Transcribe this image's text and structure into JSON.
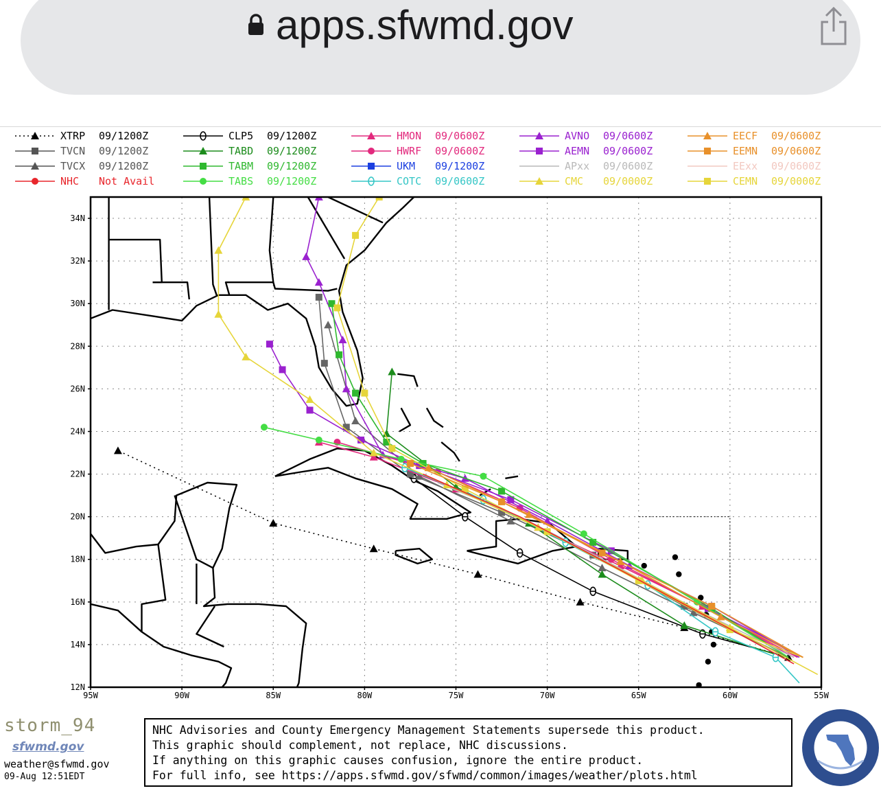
{
  "browser": {
    "url": "apps.sfwmd.gov"
  },
  "legend": [
    {
      "label": "XTRP",
      "time": "09/1200Z",
      "color": "#000000",
      "marker": "triangle",
      "dash": true
    },
    {
      "label": "TVCN",
      "time": "09/1200Z",
      "color": "#555555",
      "marker": "square"
    },
    {
      "label": "TVCX",
      "time": "09/1200Z",
      "color": "#555555",
      "marker": "triangle"
    },
    {
      "label": "NHC",
      "time": "Not Avail",
      "color": "#e8262c",
      "marker": "circle"
    },
    {
      "label": "CLP5",
      "time": "09/1200Z",
      "color": "#000000",
      "marker": "theta"
    },
    {
      "label": "TABD",
      "time": "09/1200Z",
      "color": "#1c8c1c",
      "marker": "triangle"
    },
    {
      "label": "TABM",
      "time": "09/1200Z",
      "color": "#2fb82f",
      "marker": "square"
    },
    {
      "label": "TABS",
      "time": "09/1200Z",
      "color": "#44dd44",
      "marker": "circle"
    },
    {
      "label": "HMON",
      "time": "09/0600Z",
      "color": "#e2297d",
      "marker": "triangle"
    },
    {
      "label": "HWRF",
      "time": "09/0600Z",
      "color": "#e2297d",
      "marker": "circle"
    },
    {
      "label": "UKM",
      "time": "09/1200Z",
      "color": "#1b3fe0",
      "marker": "square"
    },
    {
      "label": "COTC",
      "time": "09/0600Z",
      "color": "#35c6c6",
      "marker": "theta"
    },
    {
      "label": "AVNO",
      "time": "09/0600Z",
      "color": "#9a21cf",
      "marker": "triangle"
    },
    {
      "label": "AEMN",
      "time": "09/0600Z",
      "color": "#9a21cf",
      "marker": "square"
    },
    {
      "label": "APxx",
      "time": "09/0600Z",
      "color": "#b9b9b9",
      "marker": "none"
    },
    {
      "label": "CMC",
      "time": "09/0000Z",
      "color": "#e6d53a",
      "marker": "triangle"
    },
    {
      "label": "EECF",
      "time": "09/0600Z",
      "color": "#e8902a",
      "marker": "triangle"
    },
    {
      "label": "EEMN",
      "time": "09/0600Z",
      "color": "#e8902a",
      "marker": "square"
    },
    {
      "label": "EExx",
      "time": "09/0600Z",
      "color": "#f2c8c0",
      "marker": "none"
    },
    {
      "label": "CEMN",
      "time": "09/0000Z",
      "color": "#e6d53a",
      "marker": "square"
    }
  ],
  "map": {
    "lat_labels": [
      "34N",
      "32N",
      "30N",
      "28N",
      "26N",
      "24N",
      "22N",
      "20N",
      "18N",
      "16N",
      "14N",
      "12N"
    ],
    "lon_labels": [
      "95W",
      "90W",
      "85W",
      "80W",
      "75W",
      "70W",
      "65W",
      "60W",
      "55W"
    ]
  },
  "footer": {
    "line1": "NHC Advisories and County Emergency Management Statements supersede this product.",
    "line2": "This graphic should complement, not replace, NHC discussions.",
    "line3": "If anything on this graphic causes confusion, ignore the entire product.",
    "line4": "For full info, see  https://apps.sfwmd.gov/sfwmd/common/images/weather/plots.html"
  },
  "brand": {
    "name": "storm_94",
    "site": "sfwmd.gov",
    "email": "weather@sfwmd.gov",
    "stamp": "09-Aug 12:51EDT"
  },
  "tracks": [
    {
      "name": "XTRP",
      "color": "#000000",
      "dash": true,
      "marker": "triangle",
      "pts": [
        [
          -56.8,
          13.4
        ],
        [
          -62.5,
          14.8
        ],
        [
          -68.2,
          16.0
        ],
        [
          -73.8,
          17.3
        ],
        [
          -79.5,
          18.5
        ],
        [
          -85.0,
          19.7
        ],
        [
          -93.5,
          23.1
        ]
      ]
    },
    {
      "name": "CLP5",
      "color": "#000000",
      "marker": "theta",
      "pts": [
        [
          -56.8,
          13.4
        ],
        [
          -61.5,
          14.5
        ],
        [
          -67.5,
          16.5
        ],
        [
          -71.5,
          18.3
        ],
        [
          -74.5,
          20.0
        ],
        [
          -77.3,
          21.8
        ]
      ]
    },
    {
      "name": "TVCN",
      "color": "#666666",
      "marker": "square",
      "pts": [
        [
          -56.8,
          13.4
        ],
        [
          -62.5,
          15.8
        ],
        [
          -67.5,
          18.2
        ],
        [
          -72.5,
          20.2
        ],
        [
          -77.5,
          22.0
        ],
        [
          -81.0,
          24.2
        ],
        [
          -82.2,
          27.2
        ],
        [
          -82.5,
          30.3
        ]
      ]
    },
    {
      "name": "TVCX",
      "color": "#666666",
      "marker": "triangle",
      "pts": [
        [
          -56.8,
          13.4
        ],
        [
          -62.0,
          15.5
        ],
        [
          -67.0,
          17.6
        ],
        [
          -72.0,
          19.8
        ],
        [
          -77.0,
          21.9
        ],
        [
          -80.5,
          24.5
        ],
        [
          -82.0,
          29.0
        ]
      ]
    },
    {
      "name": "HMON",
      "color": "#e2297d",
      "marker": "triangle",
      "pts": [
        [
          -56.5,
          13.4
        ],
        [
          -61.5,
          15.8
        ],
        [
          -66.0,
          17.7
        ],
        [
          -70.5,
          19.5
        ],
        [
          -75.0,
          21.3
        ],
        [
          -79.5,
          22.8
        ],
        [
          -82.5,
          23.5
        ]
      ]
    },
    {
      "name": "HWRF",
      "color": "#e2297d",
      "marker": "circle",
      "pts": [
        [
          -56.3,
          13.4
        ],
        [
          -61.5,
          15.8
        ],
        [
          -66.5,
          18.0
        ],
        [
          -71.5,
          20.4
        ],
        [
          -76.0,
          22.1
        ],
        [
          -81.5,
          23.5
        ]
      ]
    },
    {
      "name": "AVNO",
      "color": "#9a21cf",
      "marker": "triangle",
      "pts": [
        [
          -56.2,
          13.4
        ],
        [
          -61.0,
          15.8
        ],
        [
          -65.5,
          17.7
        ],
        [
          -70.0,
          19.8
        ],
        [
          -74.5,
          21.8
        ],
        [
          -79.0,
          22.9
        ],
        [
          -81.0,
          26.0
        ],
        [
          -81.2,
          28.3
        ],
        [
          -82.5,
          31.0
        ],
        [
          -83.2,
          32.2
        ],
        [
          -82.5,
          35
        ]
      ]
    },
    {
      "name": "AEMN",
      "color": "#9a21cf",
      "marker": "square",
      "pts": [
        [
          -56.0,
          13.4
        ],
        [
          -61.2,
          15.7
        ],
        [
          -66.5,
          18.4
        ],
        [
          -72.0,
          20.8
        ],
        [
          -77.0,
          22.4
        ],
        [
          -80.2,
          23.6
        ],
        [
          -83.0,
          25.0
        ],
        [
          -84.5,
          26.9
        ],
        [
          -85.2,
          28.1
        ]
      ]
    },
    {
      "name": "TABD",
      "color": "#1c8c1c",
      "marker": "triangle",
      "pts": [
        [
          -57.0,
          13.4
        ],
        [
          -62.5,
          14.9
        ],
        [
          -67.0,
          17.3
        ],
        [
          -71.0,
          19.7
        ],
        [
          -75.0,
          21.4
        ],
        [
          -78.8,
          23.9
        ],
        [
          -78.5,
          26.8
        ]
      ]
    },
    {
      "name": "TABM",
      "color": "#2fb82f",
      "marker": "square",
      "pts": [
        [
          -56.8,
          13.4
        ],
        [
          -61.0,
          15.7
        ],
        [
          -67.5,
          18.8
        ],
        [
          -72.5,
          21.2
        ],
        [
          -76.8,
          22.5
        ],
        [
          -78.8,
          23.5
        ],
        [
          -80.5,
          25.8
        ],
        [
          -81.4,
          27.6
        ],
        [
          -81.8,
          30.0
        ]
      ]
    },
    {
      "name": "TABS",
      "color": "#44dd44",
      "marker": "circle",
      "pts": [
        [
          -56.8,
          13.4
        ],
        [
          -61.8,
          16.0
        ],
        [
          -68.0,
          19.2
        ],
        [
          -73.5,
          21.9
        ],
        [
          -78.0,
          22.7
        ],
        [
          -82.5,
          23.6
        ],
        [
          -85.5,
          24.2
        ]
      ]
    },
    {
      "name": "COTC",
      "color": "#35c6c6",
      "marker": "theta",
      "pts": [
        [
          -56.2,
          12.2
        ],
        [
          -57.5,
          13.4
        ],
        [
          -60.8,
          14.6
        ],
        [
          -64.5,
          16.8
        ],
        [
          -69.0,
          18.8
        ],
        [
          -73.5,
          20.8
        ],
        [
          -77.8,
          22.3
        ]
      ]
    },
    {
      "name": "APxx",
      "color": "#b9b9b9",
      "marker": "none",
      "pts": [
        [
          -56.5,
          13.4
        ],
        [
          -61.5,
          15.5
        ],
        [
          -66.5,
          17.8
        ],
        [
          -71.5,
          20.0
        ],
        [
          -76.0,
          21.6
        ]
      ]
    },
    {
      "name": "CMC",
      "color": "#e6d53a",
      "marker": "triangle",
      "pts": [
        [
          -55.2,
          12.6
        ],
        [
          -60.0,
          14.8
        ],
        [
          -64.8,
          17.0
        ],
        [
          -70.5,
          19.5
        ],
        [
          -75.5,
          21.5
        ],
        [
          -79.5,
          23.0
        ],
        [
          -83.0,
          25.5
        ],
        [
          -86.5,
          27.5
        ],
        [
          -88.0,
          29.5
        ],
        [
          -88.0,
          32.5
        ],
        [
          -86.5,
          35
        ]
      ]
    },
    {
      "name": "CEMN",
      "color": "#e6d53a",
      "marker": "square",
      "pts": [
        [
          -56.0,
          13.4
        ],
        [
          -60.0,
          14.7
        ],
        [
          -65.0,
          17.0
        ],
        [
          -70.0,
          19.3
        ],
        [
          -74.5,
          21.3
        ],
        [
          -78.5,
          23.2
        ],
        [
          -80.0,
          25.8
        ],
        [
          -81.5,
          29.8
        ],
        [
          -80.5,
          33.2
        ],
        [
          -79.2,
          35
        ]
      ]
    },
    {
      "name": "EECF",
      "color": "#e8902a",
      "marker": "triangle",
      "pts": [
        [
          -56.0,
          13.4
        ],
        [
          -60.5,
          15.3
        ],
        [
          -66.0,
          17.9
        ],
        [
          -71.0,
          20.1
        ],
        [
          -76.5,
          22.3
        ]
      ]
    },
    {
      "name": "EEMN",
      "color": "#e8902a",
      "marker": "square",
      "pts": [
        [
          -56.0,
          13.4
        ],
        [
          -61.0,
          15.8
        ],
        [
          -67.0,
          18.3
        ],
        [
          -72.5,
          20.7
        ],
        [
          -77.5,
          22.5
        ]
      ]
    },
    {
      "name": "NHC",
      "color": "#e8262c",
      "marker": "none",
      "pts": [
        [
          -56.5,
          13.1
        ],
        [
          -61.0,
          15.2
        ],
        [
          -66.0,
          17.5
        ],
        [
          -71.5,
          20.0
        ],
        [
          -76.8,
          22.0
        ]
      ]
    }
  ]
}
